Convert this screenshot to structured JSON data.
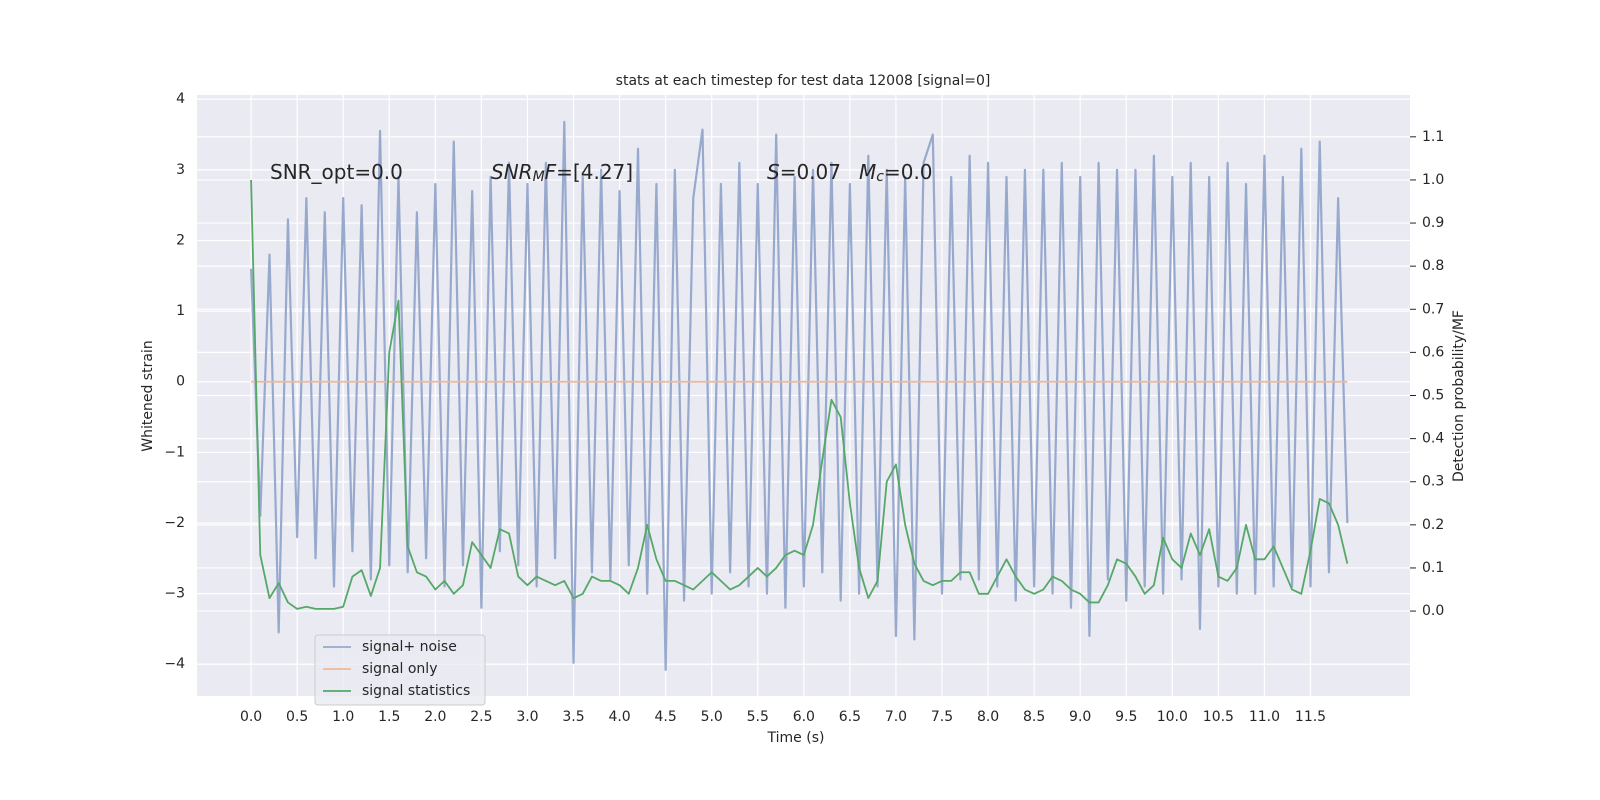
{
  "chart_data": {
    "type": "line",
    "title": "stats at each timestep for test data 12008 [signal=0]",
    "xlabel": "Time (s)",
    "ylabel": "Whitened strain",
    "y2label": "Detection probability/MF",
    "annotations": [
      [
        {
          "t": "SNR_opt=0.0"
        }
      ],
      [
        {
          "t": "SNR",
          "italic": true
        },
        {
          "t": "M",
          "italic": true,
          "sub": true
        },
        {
          "t": "F",
          "italic": true
        },
        {
          "t": "=[4.27]"
        }
      ],
      [
        {
          "t": "S",
          "italic": true
        },
        {
          "t": "=0.07"
        }
      ],
      [
        {
          "t": "M",
          "italic": true
        },
        {
          "t": "c",
          "italic": true,
          "sub": true
        },
        {
          "t": "=0.0"
        }
      ]
    ],
    "x": [
      0,
      0.1,
      0.2,
      0.3,
      0.4,
      0.5,
      0.6,
      0.7,
      0.8,
      0.9,
      1,
      1.1,
      1.2,
      1.3,
      1.4,
      1.5,
      1.6,
      1.7,
      1.8,
      1.9,
      2,
      2.1,
      2.2,
      2.3,
      2.4,
      2.5,
      2.6,
      2.7,
      2.8,
      2.9,
      3,
      3.1,
      3.2,
      3.3,
      3.4,
      3.5,
      3.6,
      3.7,
      3.8,
      3.9,
      4,
      4.1,
      4.2,
      4.3,
      4.4,
      4.5,
      4.6,
      4.7,
      4.8,
      4.9,
      5,
      5.1,
      5.2,
      5.3,
      5.4,
      5.5,
      5.6,
      5.7,
      5.8,
      5.9,
      6,
      6.1,
      6.2,
      6.3,
      6.4,
      6.5,
      6.6,
      6.7,
      6.8,
      6.9,
      7,
      7.1,
      7.2,
      7.3,
      7.4,
      7.5,
      7.6,
      7.7,
      7.8,
      7.9,
      8,
      8.1,
      8.2,
      8.3,
      8.4,
      8.5,
      8.6,
      8.7,
      8.8,
      8.9,
      9,
      9.1,
      9.2,
      9.3,
      9.4,
      9.5,
      9.6,
      9.7,
      9.8,
      9.9,
      10,
      10.1,
      10.2,
      10.3,
      10.4,
      10.5,
      10.6,
      10.7,
      10.8,
      10.9,
      11,
      11.1,
      11.2,
      11.3,
      11.4,
      11.5,
      11.6,
      11.7,
      11.8,
      11.9
    ],
    "series": [
      {
        "name": "signal+ noise",
        "color": "#98a9ce",
        "values": [
          1.6,
          -1.9,
          1.8,
          -3.55,
          2.3,
          -2.2,
          2.6,
          -2.5,
          2.4,
          -2.9,
          2.6,
          -2.4,
          2.5,
          -2.8,
          3.55,
          -2.6,
          2.9,
          -2.7,
          2.4,
          -2.5,
          2.8,
          -2.9,
          3.4,
          -2.6,
          2.7,
          -3.2,
          2.9,
          -2.4,
          3.1,
          -2.6,
          2.8,
          -2.9,
          3.1,
          -2.5,
          3.68,
          -3.98,
          2.9,
          -2.7,
          3.0,
          -2.8,
          2.7,
          -2.6,
          3.3,
          -3.0,
          2.8,
          -4.08,
          3.0,
          -3.1,
          2.6,
          3.57,
          -3.0,
          2.8,
          -2.7,
          3.1,
          -2.9,
          2.8,
          -3.0,
          3.5,
          -3.2,
          2.9,
          -2.9,
          3.0,
          -2.7,
          3.1,
          -3.1,
          2.8,
          -3.0,
          3.2,
          -2.9,
          3.0,
          -3.6,
          2.9,
          -3.65,
          3.1,
          3.5,
          -3.0,
          2.9,
          -2.8,
          3.2,
          -2.8,
          3.1,
          -2.9,
          2.9,
          -3.1,
          3.0,
          -2.9,
          3.0,
          -3.0,
          3.1,
          -3.2,
          2.9,
          -3.6,
          3.1,
          -2.8,
          3.0,
          -3.1,
          3.0,
          -2.9,
          3.2,
          -3.0,
          2.9,
          -2.8,
          3.1,
          -3.5,
          2.9,
          -2.9,
          3.1,
          -3.0,
          2.8,
          -3.0,
          3.2,
          -2.9,
          2.9,
          -2.9,
          3.3,
          -2.9,
          3.4,
          -2.7,
          2.6,
          -2.0
        ]
      },
      {
        "name": "signal only",
        "color": "#eeb99b",
        "values": [
          0,
          0,
          0,
          0,
          0,
          0,
          0,
          0,
          0,
          0,
          0,
          0,
          0,
          0,
          0,
          0,
          0,
          0,
          0,
          0,
          0,
          0,
          0,
          0,
          0,
          0,
          0,
          0,
          0,
          0,
          0,
          0,
          0,
          0,
          0,
          0,
          0,
          0,
          0,
          0,
          0,
          0,
          0,
          0,
          0,
          0,
          0,
          0,
          0,
          0,
          0,
          0,
          0,
          0,
          0,
          0,
          0,
          0,
          0,
          0,
          0,
          0,
          0,
          0,
          0,
          0,
          0,
          0,
          0,
          0,
          0,
          0,
          0,
          0,
          0,
          0,
          0,
          0,
          0,
          0,
          0,
          0,
          0,
          0,
          0,
          0,
          0,
          0,
          0,
          0,
          0,
          0,
          0,
          0,
          0,
          0,
          0,
          0,
          0,
          0,
          0,
          0,
          0,
          0,
          0,
          0,
          0,
          0,
          0,
          0,
          0,
          0,
          0,
          0,
          0,
          0,
          0,
          0,
          0,
          0
        ]
      },
      {
        "name": "signal statistics",
        "color": "#55a868",
        "axis": "y2",
        "values": [
          1.0,
          0.13,
          0.03,
          0.065,
          0.02,
          0.005,
          0.01,
          0.005,
          0.005,
          0.005,
          0.01,
          0.08,
          0.095,
          0.035,
          0.1,
          0.6,
          0.72,
          0.15,
          0.09,
          0.08,
          0.05,
          0.07,
          0.04,
          0.06,
          0.16,
          0.13,
          0.1,
          0.19,
          0.18,
          0.08,
          0.06,
          0.08,
          0.07,
          0.06,
          0.07,
          0.03,
          0.04,
          0.08,
          0.07,
          0.07,
          0.06,
          0.04,
          0.1,
          0.2,
          0.12,
          0.07,
          0.07,
          0.06,
          0.05,
          0.07,
          0.09,
          0.07,
          0.05,
          0.06,
          0.08,
          0.1,
          0.08,
          0.1,
          0.13,
          0.14,
          0.13,
          0.2,
          0.35,
          0.49,
          0.45,
          0.25,
          0.1,
          0.03,
          0.07,
          0.3,
          0.34,
          0.2,
          0.11,
          0.07,
          0.06,
          0.07,
          0.07,
          0.09,
          0.09,
          0.04,
          0.04,
          0.08,
          0.12,
          0.08,
          0.05,
          0.04,
          0.05,
          0.08,
          0.07,
          0.05,
          0.04,
          0.02,
          0.02,
          0.06,
          0.12,
          0.11,
          0.08,
          0.04,
          0.06,
          0.17,
          0.12,
          0.1,
          0.18,
          0.13,
          0.19,
          0.08,
          0.07,
          0.1,
          0.2,
          0.12,
          0.12,
          0.15,
          0.1,
          0.05,
          0.04,
          0.14,
          0.26,
          0.25,
          0.2,
          0.11
        ]
      }
    ],
    "xlim": [
      -0.587,
      12.58
    ],
    "ylim": [
      -4.45,
      4.06
    ],
    "y2lim": [
      -0.197,
      1.197
    ],
    "xticks": [
      {
        "value": 0,
        "label": "0.0"
      },
      0.5,
      {
        "value": 1,
        "label": "1.0"
      },
      1.5,
      {
        "value": 2,
        "label": "2.0"
      },
      2.5,
      {
        "value": 3,
        "label": "3.0"
      },
      3.5,
      {
        "value": 4,
        "label": "4.0"
      },
      4.5,
      {
        "value": 5,
        "label": "5.0"
      },
      5.5,
      {
        "value": 6,
        "label": "6.0"
      },
      6.5,
      {
        "value": 7,
        "label": "7.0"
      },
      7.5,
      {
        "value": 8,
        "label": "8.0"
      },
      8.5,
      {
        "value": 9,
        "label": "9.0"
      },
      9.5,
      {
        "value": 10,
        "label": "10.0"
      },
      10.5,
      {
        "value": 11,
        "label": "11.0"
      },
      11.5
    ],
    "yticks": [
      {
        "value": -4,
        "label": "−4"
      },
      {
        "value": -3,
        "label": "−3"
      },
      {
        "value": -2,
        "label": "−2"
      },
      {
        "value": -1,
        "label": "−1"
      },
      0,
      1,
      2,
      3,
      4
    ],
    "y2ticks": [
      {
        "value": 0,
        "label": "0.0"
      },
      0.1,
      0.2,
      0.3,
      0.4,
      0.5,
      0.6,
      0.7,
      0.8,
      0.9,
      {
        "value": 1,
        "label": "1.0"
      },
      1.1
    ],
    "grid": true,
    "legend": "lower left"
  }
}
